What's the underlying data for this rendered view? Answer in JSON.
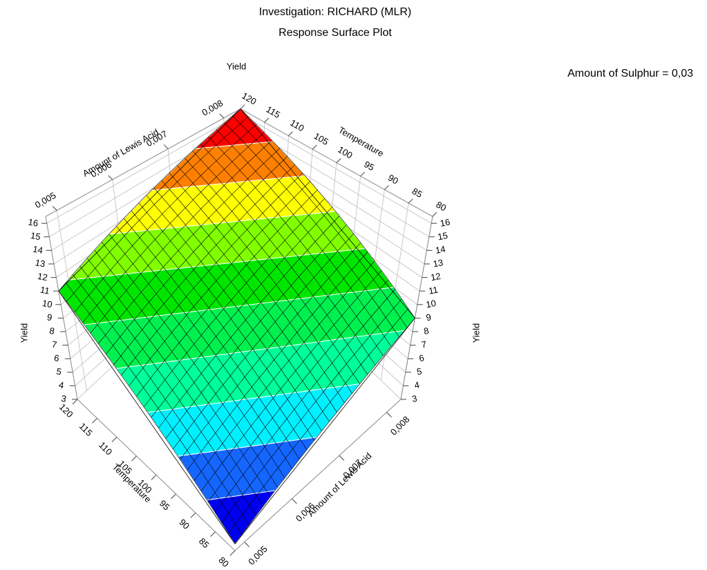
{
  "chart_data": {
    "type": "surface",
    "title": "Investigation: RICHARD (MLR)",
    "subtitle": "Response Surface Plot",
    "annotation": "Amount of Sulphur = 0,03",
    "x_label": "Temperature",
    "y_label": "Amount of Lewis Acid",
    "z_label": "Yield",
    "xlim": [
      80,
      120
    ],
    "xticks": [
      80,
      85,
      90,
      95,
      100,
      105,
      110,
      115,
      120
    ],
    "ylim": [
      0.0048,
      0.0083
    ],
    "yticks": [
      {
        "value": 0.005,
        "label": "0,005"
      },
      {
        "value": 0.006,
        "label": "0,006"
      },
      {
        "value": 0.007,
        "label": "0,007"
      },
      {
        "value": 0.008,
        "label": "0,008"
      }
    ],
    "zlim": [
      3,
      16.5
    ],
    "zticks": [
      3,
      4,
      5,
      6,
      7,
      8,
      9,
      10,
      11,
      12,
      13,
      14,
      15,
      16
    ],
    "surface": {
      "x": [
        80,
        120
      ],
      "y": [
        0.0048,
        0.0083
      ],
      "z": [
        [
          3.5,
          9
        ],
        [
          11,
          16.5
        ]
      ]
    },
    "levels": [
      3.5,
      4.8,
      6.1,
      7.4,
      8.7,
      10,
      11.3,
      12.6,
      13.9,
      15.2,
      16.5
    ],
    "colors": [
      "#0000f0",
      "#1466ff",
      "#00f0ff",
      "#00ff99",
      "#00f050",
      "#00e600",
      "#80ff00",
      "#ffff00",
      "#ff8000",
      "#ff0000"
    ],
    "grid": true
  }
}
